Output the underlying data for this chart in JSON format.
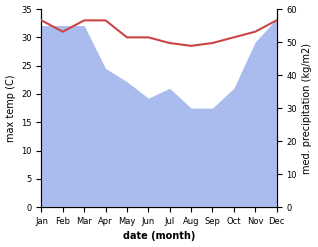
{
  "months": [
    "Jan",
    "Feb",
    "Mar",
    "Apr",
    "May",
    "Jun",
    "Jul",
    "Aug",
    "Sep",
    "Oct",
    "Nov",
    "Dec"
  ],
  "max_temp": [
    33,
    31,
    33,
    33,
    30,
    30,
    29,
    28.5,
    29,
    30,
    31,
    33
  ],
  "precipitation": [
    55,
    55,
    55,
    42,
    38,
    33,
    36,
    30,
    30,
    36,
    50,
    57
  ],
  "temp_color": "#cc4444",
  "precip_color": "#aabbee",
  "ylim_left": [
    0,
    35
  ],
  "ylim_right": [
    0,
    60
  ],
  "xlabel": "date (month)",
  "ylabel_left": "max temp (C)",
  "ylabel_right": "med. precipitation (kg/m2)",
  "bg_color": "#ffffff",
  "fig_width": 3.18,
  "fig_height": 2.47,
  "dpi": 100
}
